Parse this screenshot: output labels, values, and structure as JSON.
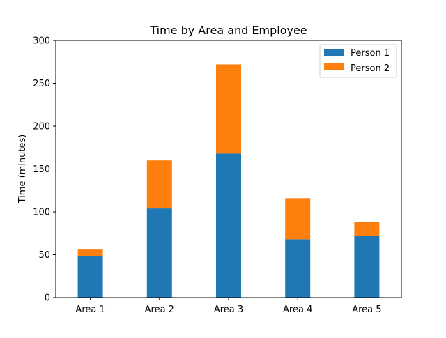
{
  "chart_data": {
    "type": "bar",
    "stacked": true,
    "title": "Time by Area and Employee",
    "xlabel": "",
    "ylabel": "Time (minutes)",
    "categories": [
      "Area 1",
      "Area 2",
      "Area 3",
      "Area 4",
      "Area 5"
    ],
    "series": [
      {
        "name": "Person 1",
        "values": [
          48,
          104,
          168,
          68,
          72
        ],
        "color": "#1f77b4"
      },
      {
        "name": "Person 2",
        "values": [
          8,
          56,
          104,
          48,
          16
        ],
        "color": "#ff7f0e"
      }
    ],
    "ylim": [
      0,
      300
    ],
    "yticks": [
      0,
      50,
      100,
      150,
      200,
      250,
      300
    ],
    "grid": false,
    "legend_position": "top-right"
  }
}
